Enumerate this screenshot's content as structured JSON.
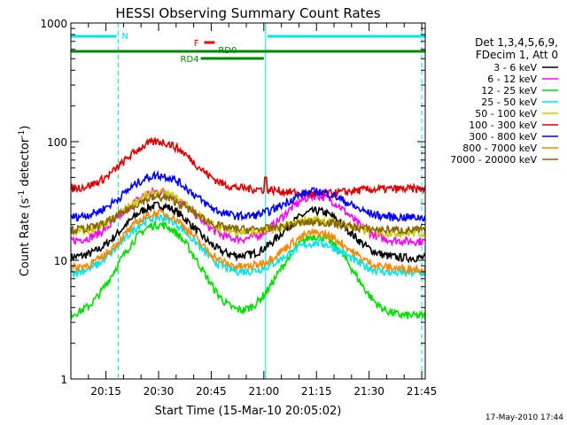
{
  "chart_data": {
    "type": "line",
    "title": "HESSI Observing Summary Count Rates",
    "xlabel": "Start Time (15-Mar-10 20:05:02)",
    "ylabel_main": "Count Rate (s",
    "ylabel_sup1": "-1",
    "ylabel_mid": " detector",
    "ylabel_sup2": "-1",
    "ylabel_end": ")",
    "yscale": "log",
    "ylim": [
      1,
      1000
    ],
    "xlim_minutes": [
      0,
      101
    ],
    "xticks": [
      {
        "t": 10,
        "label": "20:15"
      },
      {
        "t": 25,
        "label": "20:30"
      },
      {
        "t": 40,
        "label": "20:45"
      },
      {
        "t": 55,
        "label": "21:00"
      },
      {
        "t": 70,
        "label": "21:15"
      },
      {
        "t": 85,
        "label": "21:30"
      },
      {
        "t": 100,
        "label": "21:45"
      }
    ],
    "yticks": [
      {
        "v": 1,
        "label": "1"
      },
      {
        "v": 10,
        "label": "10"
      },
      {
        "v": 100,
        "label": "100"
      },
      {
        "v": 1000,
        "label": "1000"
      }
    ],
    "legend_header": [
      "Det 1,3,4,5,6,9,",
      "FDecim 1, Att 0"
    ],
    "series": [
      {
        "name": "3 - 6 keV",
        "color": "#000000",
        "base": 10.5,
        "orbit1": 29,
        "orbit2": 26
      },
      {
        "name": "6 - 12 keV",
        "color": "#ff00ff",
        "base": 14.5,
        "orbit1": 38,
        "orbit2": 35
      },
      {
        "name": "12 - 25 keV",
        "color": "#00dd00",
        "base": 3.4,
        "orbit1": 20,
        "orbit2": 16
      },
      {
        "name": "25 - 50 keV",
        "color": "#00e5e5",
        "base": 7.8,
        "orbit1": 23,
        "orbit2": 14
      },
      {
        "name": "50 - 100 keV",
        "color": "#cccc00",
        "base": 17,
        "orbit1": 37,
        "orbit2": 22
      },
      {
        "name": "100 - 300 keV",
        "color": "#dd0000",
        "base": 40,
        "orbit1": 100,
        "orbit2": 36
      },
      {
        "name": "300 - 800 keV",
        "color": "#0000ff",
        "base": 23,
        "orbit1": 52,
        "orbit2": 38
      },
      {
        "name": "800 - 7000 keV",
        "color": "#ff8800",
        "base": 8.5,
        "orbit1": 25,
        "orbit2": 17
      },
      {
        "name": "7000 - 20000 keV",
        "color": "#886600",
        "base": 18,
        "orbit1": 34,
        "orbit2": 21
      }
    ],
    "flags": [
      {
        "label": "N",
        "color": "#00e5e5",
        "ranges": [
          [
            0,
            13
          ],
          [
            56,
            101
          ]
        ]
      },
      {
        "label": "F",
        "color": "#ff0000",
        "ranges": [
          [
            38,
            41
          ]
        ]
      },
      {
        "label": "RD0",
        "color": "#008800",
        "ranges": [
          [
            0,
            101
          ]
        ]
      },
      {
        "label": "RD4",
        "color": "#008800",
        "ranges": [
          [
            37,
            55
          ]
        ]
      }
    ],
    "vertical_markers": [
      {
        "t": 13.5,
        "style": "dashed",
        "color": "#00e5e5"
      },
      {
        "t": 55.5,
        "style": "solid",
        "color": "#00e5e5"
      },
      {
        "t": 100,
        "style": "dashed",
        "color": "#00e5e5"
      },
      {
        "t": 0,
        "style": "solid",
        "color": "#00e5e5"
      }
    ],
    "grid": false,
    "legend_placement": "right"
  },
  "footer": {
    "date": "17-May-2010 17:44"
  }
}
